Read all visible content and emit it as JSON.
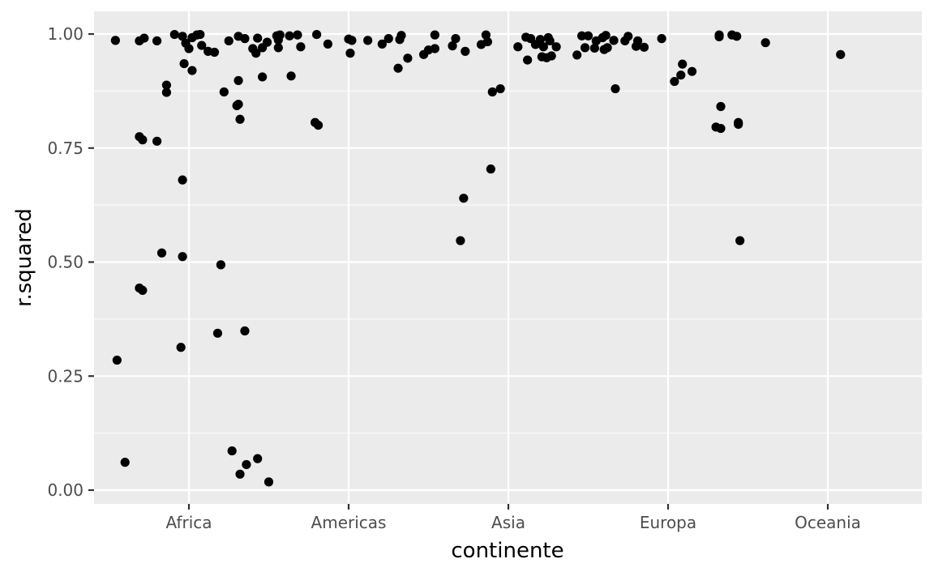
{
  "chart_data": {
    "type": "scatter",
    "title": "",
    "xlabel": "continente",
    "ylabel": "r.squared",
    "categories": [
      "Africa",
      "Americas",
      "Asia",
      "Europa",
      "Oceania"
    ],
    "ylim": [
      -0.03,
      1.05
    ],
    "y_ticks": [
      0.0,
      0.25,
      0.5,
      0.75,
      1.0
    ],
    "y_tick_labels": [
      "0.00",
      "0.25",
      "0.50",
      "0.75",
      "1.00"
    ],
    "grid": true,
    "legend": "none",
    "colors": {
      "panel": "#ebebeb",
      "grid": "#ffffff",
      "point": "#000000",
      "tick_text": "#4d4d4d",
      "tick_mark": "#333333"
    },
    "points": [
      {
        "x": 0.54,
        "y": 0.986
      },
      {
        "x": 0.55,
        "y": 0.285
      },
      {
        "x": 0.6,
        "y": 0.061
      },
      {
        "x": 0.69,
        "y": 0.985
      },
      {
        "x": 0.69,
        "y": 0.775
      },
      {
        "x": 0.69,
        "y": 0.443
      },
      {
        "x": 0.71,
        "y": 0.768
      },
      {
        "x": 0.71,
        "y": 0.438
      },
      {
        "x": 0.72,
        "y": 0.991
      },
      {
        "x": 0.8,
        "y": 0.985
      },
      {
        "x": 0.8,
        "y": 0.765
      },
      {
        "x": 0.83,
        "y": 0.52
      },
      {
        "x": 0.86,
        "y": 0.888
      },
      {
        "x": 0.86,
        "y": 0.872
      },
      {
        "x": 0.91,
        "y": 0.999
      },
      {
        "x": 0.95,
        "y": 0.313
      },
      {
        "x": 0.96,
        "y": 0.995
      },
      {
        "x": 0.96,
        "y": 0.68
      },
      {
        "x": 0.96,
        "y": 0.512
      },
      {
        "x": 0.97,
        "y": 0.935
      },
      {
        "x": 0.98,
        "y": 0.98
      },
      {
        "x": 1.0,
        "y": 0.968
      },
      {
        "x": 1.02,
        "y": 0.92
      },
      {
        "x": 1.02,
        "y": 0.992
      },
      {
        "x": 1.05,
        "y": 0.998
      },
      {
        "x": 1.07,
        "y": 0.999
      },
      {
        "x": 1.08,
        "y": 0.975
      },
      {
        "x": 1.12,
        "y": 0.962
      },
      {
        "x": 1.16,
        "y": 0.96
      },
      {
        "x": 1.18,
        "y": 0.344
      },
      {
        "x": 1.2,
        "y": 0.494
      },
      {
        "x": 1.22,
        "y": 0.873
      },
      {
        "x": 1.25,
        "y": 0.985
      },
      {
        "x": 1.27,
        "y": 0.086
      },
      {
        "x": 1.3,
        "y": 0.843
      },
      {
        "x": 1.31,
        "y": 0.898
      },
      {
        "x": 1.31,
        "y": 0.995
      },
      {
        "x": 1.31,
        "y": 0.846
      },
      {
        "x": 1.32,
        "y": 0.813
      },
      {
        "x": 1.32,
        "y": 0.035
      },
      {
        "x": 1.35,
        "y": 0.99
      },
      {
        "x": 1.35,
        "y": 0.349
      },
      {
        "x": 1.36,
        "y": 0.056
      },
      {
        "x": 1.4,
        "y": 0.968
      },
      {
        "x": 1.42,
        "y": 0.958
      },
      {
        "x": 1.43,
        "y": 0.991
      },
      {
        "x": 1.43,
        "y": 0.069
      },
      {
        "x": 1.46,
        "y": 0.97
      },
      {
        "x": 1.46,
        "y": 0.906
      },
      {
        "x": 1.49,
        "y": 0.982
      },
      {
        "x": 1.5,
        "y": 0.018
      },
      {
        "x": 1.55,
        "y": 0.996
      },
      {
        "x": 1.56,
        "y": 0.987
      },
      {
        "x": 1.56,
        "y": 0.97
      },
      {
        "x": 1.57,
        "y": 0.998
      },
      {
        "x": 1.63,
        "y": 0.996
      },
      {
        "x": 1.64,
        "y": 0.908
      },
      {
        "x": 1.68,
        "y": 0.998
      },
      {
        "x": 1.7,
        "y": 0.972
      },
      {
        "x": 1.79,
        "y": 0.806
      },
      {
        "x": 1.8,
        "y": 0.999
      },
      {
        "x": 1.81,
        "y": 0.8
      },
      {
        "x": 1.87,
        "y": 0.978
      },
      {
        "x": 2.0,
        "y": 0.989
      },
      {
        "x": 2.01,
        "y": 0.958
      },
      {
        "x": 2.02,
        "y": 0.986
      },
      {
        "x": 2.12,
        "y": 0.986
      },
      {
        "x": 2.21,
        "y": 0.978
      },
      {
        "x": 2.25,
        "y": 0.99
      },
      {
        "x": 2.31,
        "y": 0.925
      },
      {
        "x": 2.32,
        "y": 0.988
      },
      {
        "x": 2.33,
        "y": 0.997
      },
      {
        "x": 2.37,
        "y": 0.947
      },
      {
        "x": 2.47,
        "y": 0.955
      },
      {
        "x": 2.5,
        "y": 0.965
      },
      {
        "x": 2.54,
        "y": 0.998
      },
      {
        "x": 2.54,
        "y": 0.968
      },
      {
        "x": 2.65,
        "y": 0.974
      },
      {
        "x": 2.67,
        "y": 0.99
      },
      {
        "x": 2.7,
        "y": 0.547
      },
      {
        "x": 2.72,
        "y": 0.64
      },
      {
        "x": 2.73,
        "y": 0.962
      },
      {
        "x": 2.83,
        "y": 0.977
      },
      {
        "x": 2.86,
        "y": 0.998
      },
      {
        "x": 2.87,
        "y": 0.983
      },
      {
        "x": 2.89,
        "y": 0.704
      },
      {
        "x": 2.9,
        "y": 0.873
      },
      {
        "x": 2.95,
        "y": 0.88
      },
      {
        "x": 3.06,
        "y": 0.972
      },
      {
        "x": 3.11,
        "y": 0.993
      },
      {
        "x": 3.12,
        "y": 0.943
      },
      {
        "x": 3.14,
        "y": 0.99
      },
      {
        "x": 3.17,
        "y": 0.977
      },
      {
        "x": 3.19,
        "y": 0.98
      },
      {
        "x": 3.2,
        "y": 0.988
      },
      {
        "x": 3.21,
        "y": 0.95
      },
      {
        "x": 3.22,
        "y": 0.972
      },
      {
        "x": 3.24,
        "y": 0.948
      },
      {
        "x": 3.25,
        "y": 0.992
      },
      {
        "x": 3.26,
        "y": 0.985
      },
      {
        "x": 3.27,
        "y": 0.952
      },
      {
        "x": 3.3,
        "y": 0.972
      },
      {
        "x": 3.43,
        "y": 0.954
      },
      {
        "x": 3.46,
        "y": 0.996
      },
      {
        "x": 3.48,
        "y": 0.97
      },
      {
        "x": 3.5,
        "y": 0.996
      },
      {
        "x": 3.54,
        "y": 0.969
      },
      {
        "x": 3.55,
        "y": 0.985
      },
      {
        "x": 3.59,
        "y": 0.992
      },
      {
        "x": 3.6,
        "y": 0.966
      },
      {
        "x": 3.61,
        "y": 0.997
      },
      {
        "x": 3.62,
        "y": 0.97
      },
      {
        "x": 3.66,
        "y": 0.986
      },
      {
        "x": 3.67,
        "y": 0.88
      },
      {
        "x": 3.73,
        "y": 0.985
      },
      {
        "x": 3.75,
        "y": 0.995
      },
      {
        "x": 3.8,
        "y": 0.973
      },
      {
        "x": 3.81,
        "y": 0.985
      },
      {
        "x": 3.85,
        "y": 0.971
      },
      {
        "x": 3.96,
        "y": 0.99
      },
      {
        "x": 4.04,
        "y": 0.896
      },
      {
        "x": 4.08,
        "y": 0.91
      },
      {
        "x": 4.09,
        "y": 0.934
      },
      {
        "x": 4.15,
        "y": 0.918
      },
      {
        "x": 4.3,
        "y": 0.796
      },
      {
        "x": 4.32,
        "y": 0.998
      },
      {
        "x": 4.32,
        "y": 0.994
      },
      {
        "x": 4.33,
        "y": 0.793
      },
      {
        "x": 4.33,
        "y": 0.841
      },
      {
        "x": 4.4,
        "y": 0.998
      },
      {
        "x": 4.43,
        "y": 0.995
      },
      {
        "x": 4.44,
        "y": 0.806
      },
      {
        "x": 4.44,
        "y": 0.802
      },
      {
        "x": 4.45,
        "y": 0.547
      },
      {
        "x": 4.61,
        "y": 0.981
      },
      {
        "x": 5.08,
        "y": 0.955
      }
    ]
  }
}
